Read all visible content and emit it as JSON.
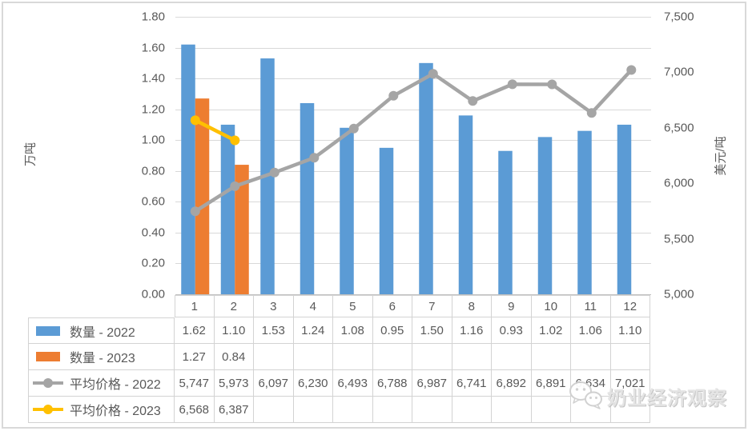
{
  "chart_data": {
    "type": "combo",
    "title": "",
    "categories": [
      "1",
      "2",
      "3",
      "4",
      "5",
      "6",
      "7",
      "8",
      "9",
      "10",
      "11",
      "12"
    ],
    "series": [
      {
        "name": "数量 - 2022",
        "type": "bar",
        "axis": "left",
        "color": "#5B9BD5",
        "values": [
          1.62,
          1.1,
          1.53,
          1.24,
          1.08,
          0.95,
          1.5,
          1.16,
          0.93,
          1.02,
          1.06,
          1.1
        ]
      },
      {
        "name": "数量 - 2023",
        "type": "bar",
        "axis": "left",
        "color": "#ED7D31",
        "values": [
          1.27,
          0.84,
          null,
          null,
          null,
          null,
          null,
          null,
          null,
          null,
          null,
          null
        ]
      },
      {
        "name": "平均价格 - 2022",
        "type": "line",
        "axis": "right",
        "color": "#A5A5A5",
        "values": [
          5747,
          5973,
          6097,
          6230,
          6493,
          6788,
          6987,
          6741,
          6892,
          6891,
          6634,
          7021
        ]
      },
      {
        "name": "平均价格 - 2023",
        "type": "line",
        "axis": "right",
        "color": "#FFC000",
        "values": [
          6568,
          6387,
          null,
          null,
          null,
          null,
          null,
          null,
          null,
          null,
          null,
          null
        ]
      }
    ],
    "left_axis": {
      "title": "万吨",
      "min": 0,
      "max": 1.8,
      "step": 0.2,
      "ticks": [
        "1.80",
        "1.60",
        "1.40",
        "1.20",
        "1.00",
        "0.80",
        "0.60",
        "0.40",
        "0.20",
        "0.00"
      ]
    },
    "right_axis": {
      "title": "美元/吨",
      "min": 5000,
      "max": 7500,
      "step": 500,
      "ticks": [
        "7,500",
        "7,000",
        "6,500",
        "6,000",
        "5,500",
        "5,000"
      ]
    },
    "grid": true,
    "legend_position": "data-table-left"
  },
  "table": {
    "rows": [
      {
        "label": "数量 - 2022",
        "key": "bar",
        "color": "#5B9BD5",
        "cells": [
          "1.62",
          "1.10",
          "1.53",
          "1.24",
          "1.08",
          "0.95",
          "1.50",
          "1.16",
          "0.93",
          "1.02",
          "1.06",
          "1.10"
        ]
      },
      {
        "label": "数量 - 2023",
        "key": "bar",
        "color": "#ED7D31",
        "cells": [
          "1.27",
          "0.84",
          "",
          "",
          "",
          "",
          "",
          "",
          "",
          "",
          "",
          ""
        ]
      },
      {
        "label": "平均价格 - 2022",
        "key": "line",
        "color": "#A5A5A5",
        "cells": [
          "5,747",
          "5,973",
          "6,097",
          "6,230",
          "6,493",
          "6,788",
          "6,987",
          "6,741",
          "6,892",
          "6,891",
          "6,634",
          "7,021"
        ]
      },
      {
        "label": "平均价格 - 2023",
        "key": "line",
        "color": "#FFC000",
        "cells": [
          "6,568",
          "6,387",
          "",
          "",
          "",
          "",
          "",
          "",
          "",
          "",
          "",
          ""
        ]
      }
    ]
  },
  "watermark": {
    "text": "奶业经济观察",
    "icon": "wechat-icon"
  },
  "colors": {
    "grid": "#D9D9D9",
    "axis_line": "#C0C0C0",
    "text": "#595959",
    "table_border": "#D3D3D3",
    "frame": "#D9D9D9"
  }
}
